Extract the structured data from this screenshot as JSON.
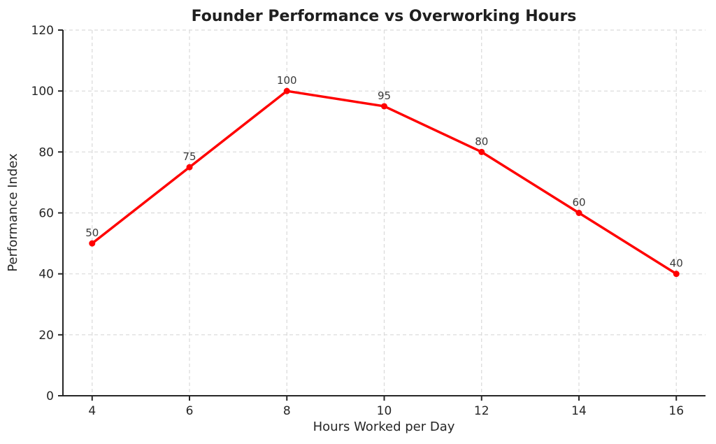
{
  "chart_data": {
    "type": "line",
    "title": "Founder Performance vs Overworking Hours",
    "xlabel": "Hours Worked per Day",
    "ylabel": "Performance Index",
    "x": [
      4,
      6,
      8,
      10,
      12,
      14,
      16
    ],
    "series": [
      {
        "name": "Performance Index",
        "values": [
          50,
          75,
          100,
          95,
          80,
          60,
          40
        ],
        "point_labels": [
          "50",
          "75",
          "100",
          "95",
          "80",
          "60",
          "40"
        ]
      }
    ],
    "xticks": [
      "4",
      "6",
      "8",
      "10",
      "12",
      "14",
      "16"
    ],
    "xtick_values": [
      4,
      6,
      8,
      10,
      12,
      14,
      16
    ],
    "yticks": [
      "0",
      "20",
      "40",
      "60",
      "80",
      "100",
      "120"
    ],
    "ytick_values": [
      0,
      20,
      40,
      60,
      80,
      100,
      120
    ],
    "xlim": [
      3.4,
      16.6
    ],
    "ylim": [
      0,
      120
    ],
    "grid": "dashed",
    "legend_position": "none",
    "colors": {
      "line": "#ff0000",
      "marker": "#ff0000",
      "grid": "#d9d9d9",
      "axis": "#262626",
      "tick_text": "#262626",
      "title_text": "#1f1f1f",
      "point_label_text": "#3a3a3a",
      "background": "#ffffff"
    }
  }
}
